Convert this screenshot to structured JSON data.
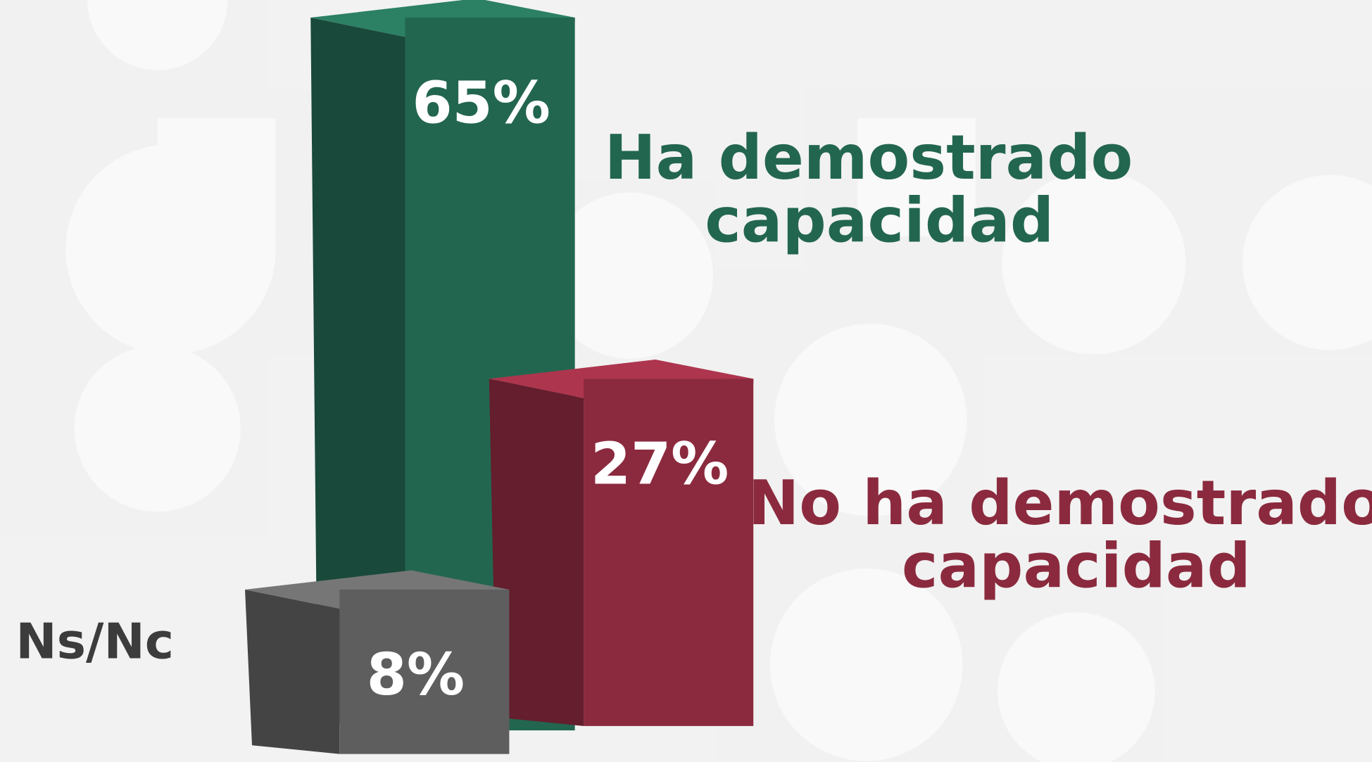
{
  "chart_data": {
    "type": "bar3d",
    "categories": [
      "Ha demostrado capacidad",
      "No ha demostrado capacidad",
      "Ns/Nc"
    ],
    "values": [
      65,
      27,
      8
    ],
    "value_labels": [
      "65%",
      "27%",
      "8%"
    ],
    "colors": [
      "#236650",
      "#8b2a3e",
      "#5e5e5e"
    ]
  }
}
